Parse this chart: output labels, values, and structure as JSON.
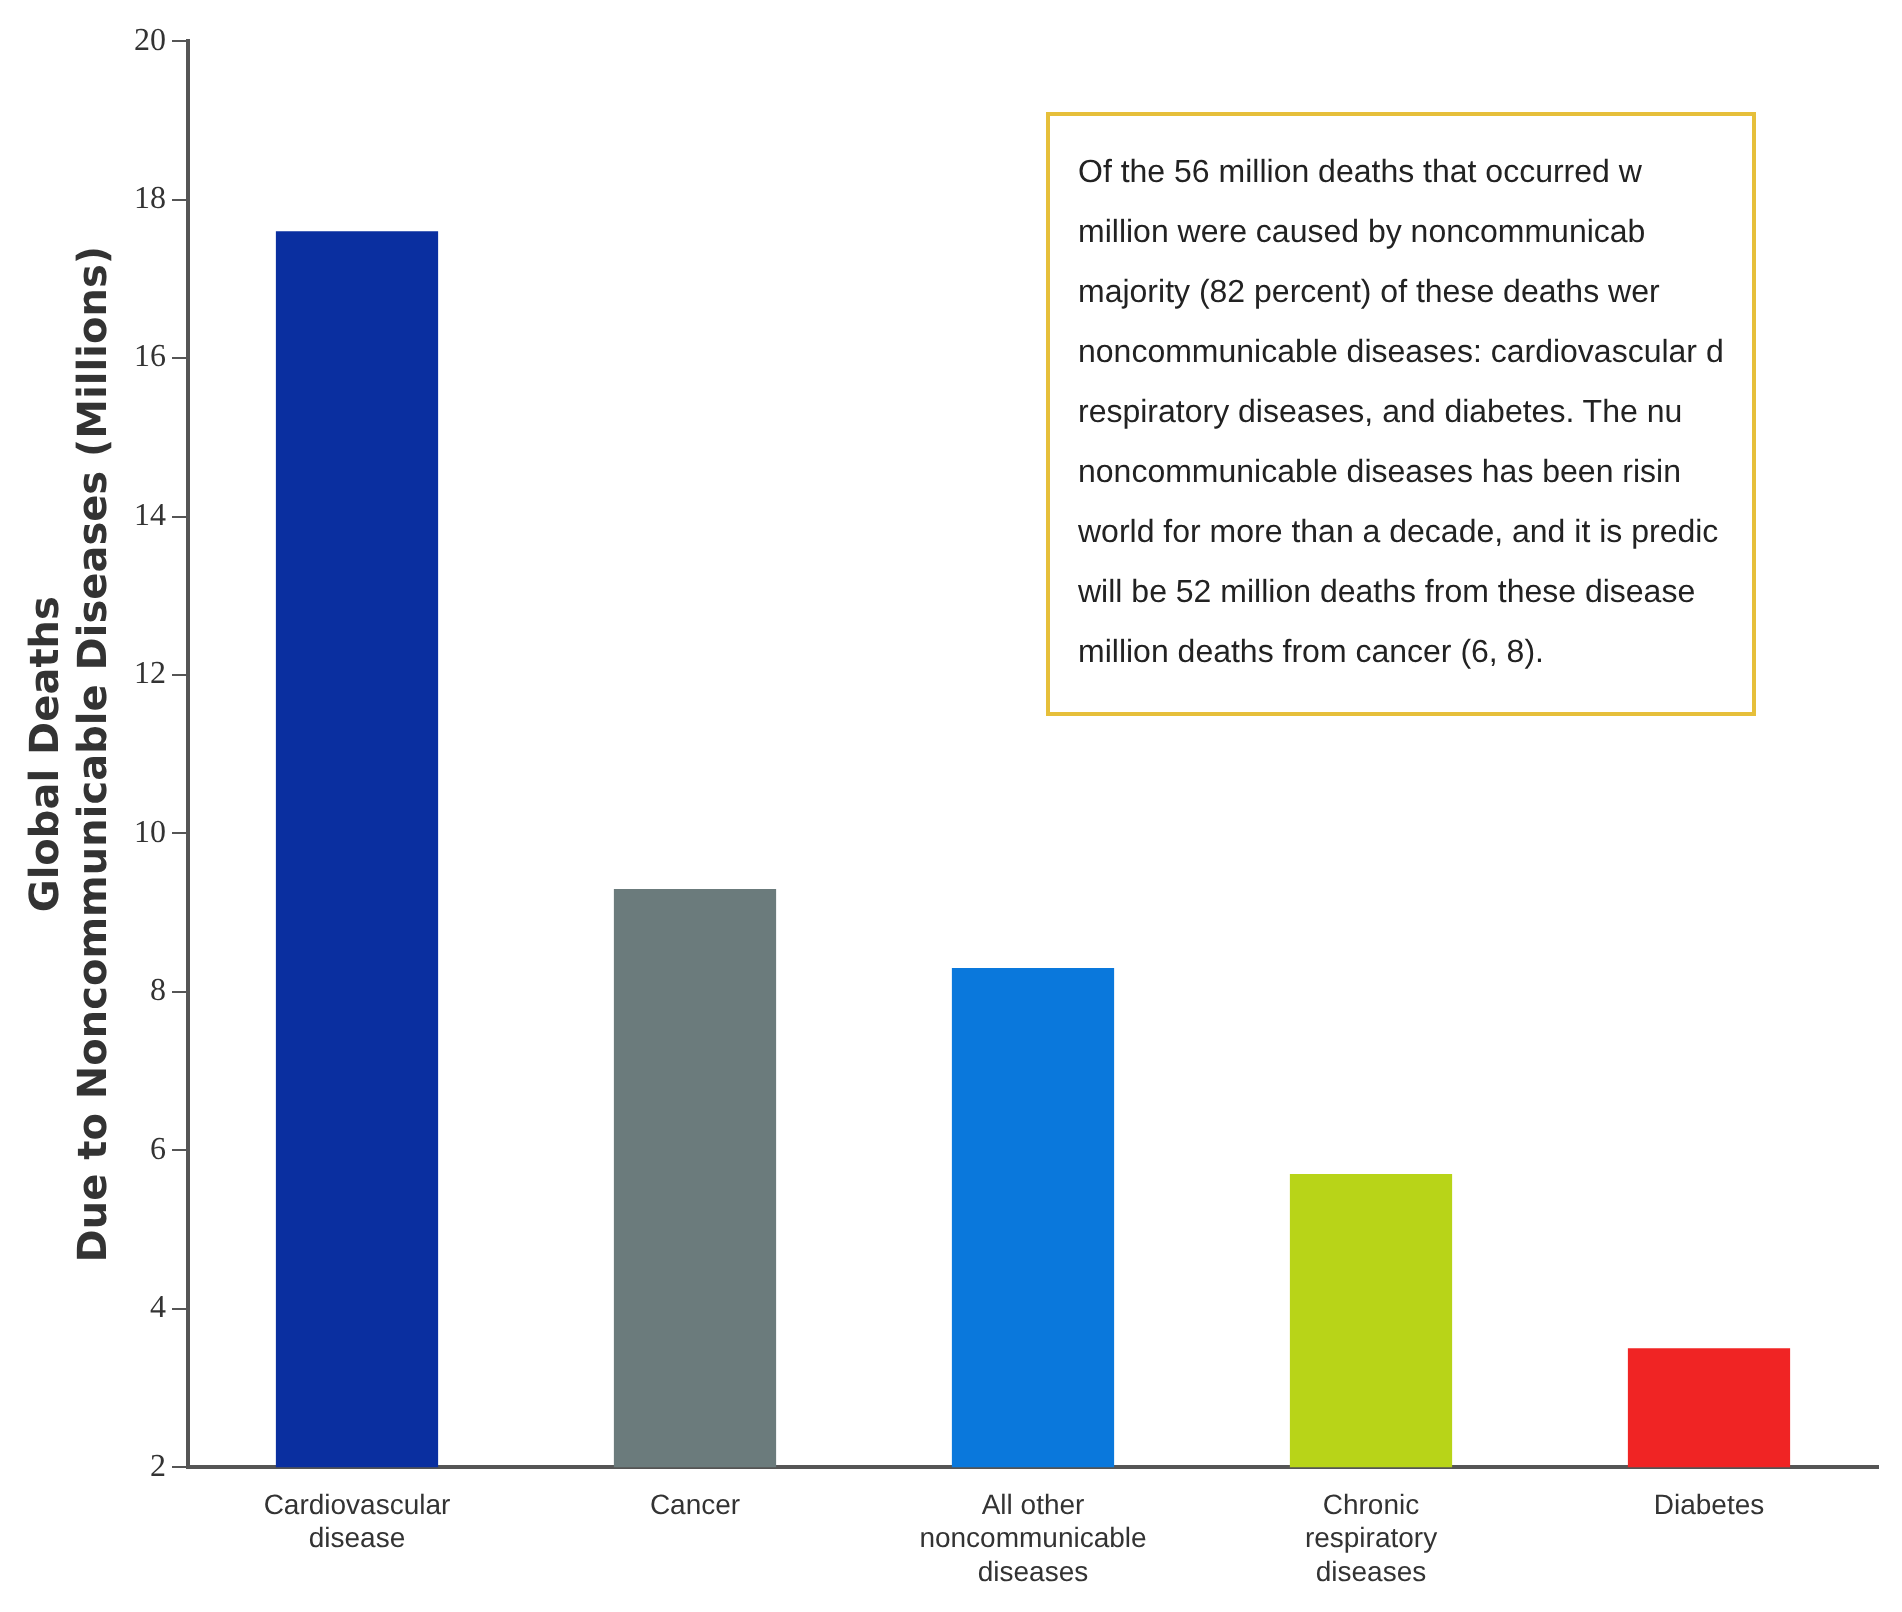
{
  "chart_data": {
    "type": "bar",
    "ylabel": "Global Deaths\nDue to Noncommunicable Diseases (Millions)",
    "categories": [
      "Cardiovascular\ndisease",
      "Cancer",
      "All other\nnoncommunicable\ndiseases",
      "Chronic\nrespiratory\ndiseases",
      "Diabetes"
    ],
    "values": [
      17.6,
      9.3,
      8.3,
      5.7,
      3.5
    ],
    "colors": [
      "#0a2fa0",
      "#6b7b7c",
      "#0a78dc",
      "#b8d418",
      "#f02424"
    ],
    "ylim": [
      2,
      20
    ],
    "yticks": [
      2,
      4,
      6,
      8,
      10,
      12,
      14,
      16,
      18,
      20
    ],
    "grid": false,
    "legend": false,
    "annotations": [
      "Of the 56 million deaths that occurred w\nmillion were caused by noncommunicab\nmajority (82 percent) of these deaths wer\nnoncommunicable diseases: cardiovascular d\nrespiratory diseases, and diabetes. The nu\nnoncommunicable diseases has been risin\nworld for more than a decade, and it is predic\nwill be 52 million deaths from these disease\nmillion deaths from cancer (6, 8)."
    ]
  }
}
